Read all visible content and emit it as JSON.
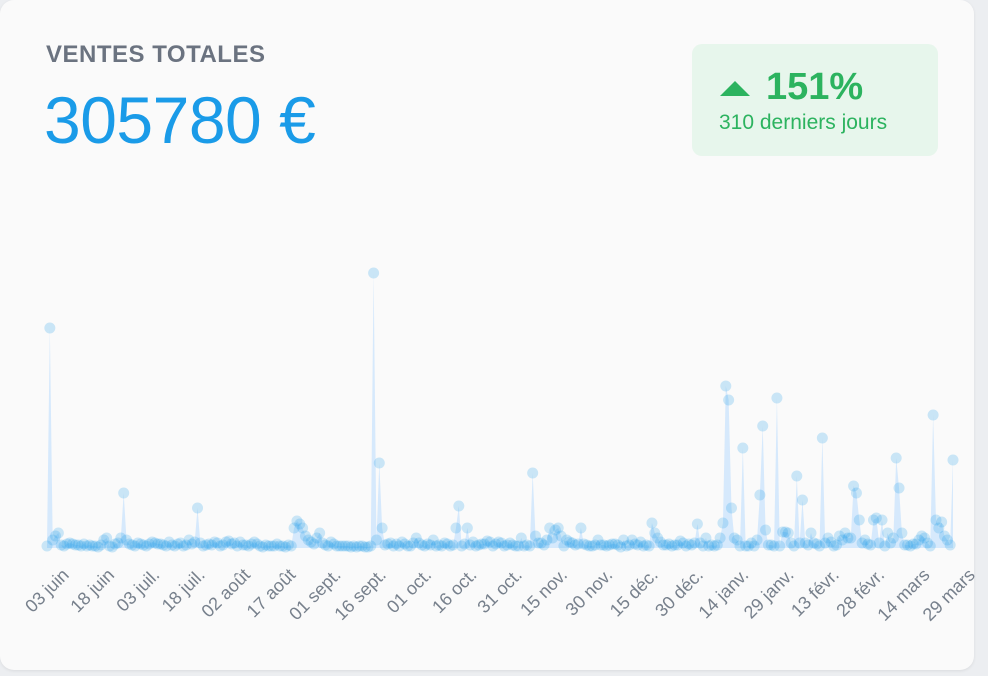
{
  "header": {
    "title": "VENTES TOTALES",
    "total": "305780 €"
  },
  "badge": {
    "percent": "151%",
    "period": "310 derniers jours",
    "color": "#2cb35f",
    "icon": "arrow-up-icon"
  },
  "chart_data": {
    "type": "area",
    "series_color": "#1a9be8",
    "fill_color": "#cfe5fb",
    "grid": false,
    "legend": "none",
    "ylim": [
      0,
      280
    ],
    "xtick_labels": [
      "03 juin",
      "18 juin",
      "03 juil.",
      "18 juil.",
      "02 août",
      "17 août",
      "01 sept.",
      "16 sept.",
      "01 oct.",
      "16 oct.",
      "31 oct.",
      "15 nov.",
      "30 nov.",
      "15 déc.",
      "30 déc.",
      "14 janv.",
      "29 janv.",
      "13 févr.",
      "28 févr.",
      "14 mars",
      "29 mars"
    ],
    "values": [
      2,
      220,
      8,
      12,
      15,
      3,
      2,
      4,
      5,
      4,
      3,
      3,
      2,
      4,
      2,
      3,
      2,
      2,
      1,
      3,
      8,
      10,
      2,
      1,
      4,
      5,
      10,
      55,
      8,
      4,
      3,
      2,
      5,
      4,
      3,
      2,
      4,
      6,
      5,
      4,
      4,
      3,
      2,
      6,
      3,
      2,
      4,
      5,
      2,
      3,
      8,
      4,
      6,
      40,
      5,
      2,
      3,
      4,
      3,
      6,
      5,
      2,
      3,
      6,
      7,
      4,
      5,
      2,
      6,
      3,
      3,
      2,
      4,
      6,
      4,
      2,
      1,
      3,
      2,
      2,
      2,
      4,
      2,
      2,
      1,
      3,
      2,
      20,
      27,
      24,
      20,
      12,
      8,
      6,
      4,
      10,
      15,
      5,
      3,
      2,
      6,
      4,
      2,
      2,
      2,
      2,
      2,
      1,
      2,
      1,
      2,
      2,
      1,
      1,
      2,
      275,
      8,
      85,
      20,
      3,
      4,
      5,
      2,
      4,
      2,
      6,
      4,
      2,
      2,
      5,
      10,
      5,
      3,
      2,
      4,
      3,
      8,
      2,
      3,
      2,
      5,
      4,
      2,
      3,
      20,
      42,
      2,
      4,
      20,
      3,
      6,
      2,
      3,
      4,
      4,
      7,
      6,
      2,
      4,
      6,
      5,
      2,
      3,
      5,
      3,
      2,
      2,
      10,
      2,
      3,
      2,
      75,
      12,
      5,
      5,
      3,
      8,
      20,
      10,
      18,
      20,
      12,
      2,
      8,
      6,
      5,
      3,
      4,
      20,
      4,
      3,
      2,
      2,
      3,
      8,
      3,
      3,
      2,
      3,
      4,
      4,
      3,
      1,
      8,
      2,
      3,
      8,
      4,
      3,
      6,
      2,
      3,
      2,
      25,
      15,
      10,
      6,
      3,
      3,
      4,
      2,
      3,
      3,
      7,
      5,
      2,
      4,
      3,
      5,
      24,
      5,
      2,
      10,
      2,
      3,
      2,
      3,
      10,
      25,
      162,
      148,
      40,
      10,
      8,
      2,
      100,
      2,
      2,
      5,
      2,
      8,
      53,
      122,
      18,
      3,
      3,
      2,
      150,
      2,
      16,
      16,
      15,
      5,
      2,
      72,
      5,
      48,
      5,
      3,
      15,
      5,
      4,
      2,
      110,
      5,
      10,
      6,
      2,
      3,
      12,
      8,
      15,
      10,
      10,
      62,
      55,
      28,
      5,
      8,
      4,
      3,
      28,
      30,
      5,
      28,
      2,
      15,
      5,
      10,
      90,
      60,
      15,
      3,
      3,
      2,
      4,
      4,
      8,
      12,
      10,
      5,
      2,
      133,
      28,
      20,
      26,
      12,
      8,
      3,
      88
    ]
  }
}
